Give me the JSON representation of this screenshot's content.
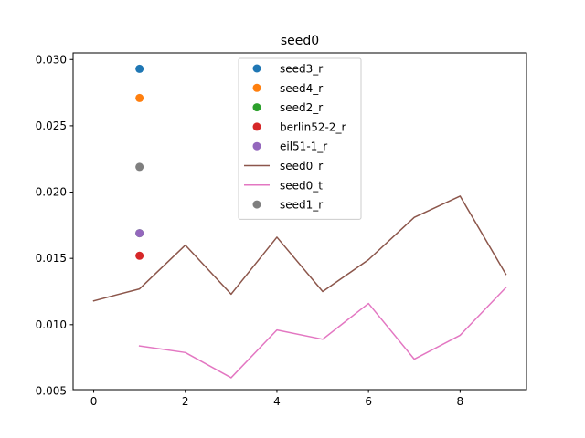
{
  "chart_data": {
    "type": "line",
    "title": "seed0",
    "xlabel": "",
    "ylabel": "",
    "xlim": [
      -0.45,
      9.45
    ],
    "ylim": [
      0.0051,
      0.0305
    ],
    "xticks": [
      0,
      2,
      4,
      6,
      8
    ],
    "yticks": [
      0.005,
      0.01,
      0.015,
      0.02,
      0.025,
      0.03
    ],
    "ytick_labels": [
      "0.005",
      "0.010",
      "0.015",
      "0.020",
      "0.025",
      "0.030"
    ],
    "grid": false,
    "legend_position": "upper-center",
    "series": [
      {
        "name": "seed3_r",
        "kind": "scatter",
        "color": "#1f77b4",
        "x": [
          1
        ],
        "y": [
          0.0293
        ]
      },
      {
        "name": "seed4_r",
        "kind": "scatter",
        "color": "#ff7f0e",
        "x": [
          1
        ],
        "y": [
          0.0271
        ]
      },
      {
        "name": "seed2_r",
        "kind": "scatter",
        "color": "#2ca02c",
        "x": [
          1
        ],
        "y": [
          0.0169
        ]
      },
      {
        "name": "berlin52-2_r",
        "kind": "scatter",
        "color": "#d62728",
        "x": [
          1
        ],
        "y": [
          0.0152
        ]
      },
      {
        "name": "eil51-1_r",
        "kind": "scatter",
        "color": "#9467bd",
        "x": [
          1
        ],
        "y": [
          0.0169
        ]
      },
      {
        "name": "seed0_r",
        "kind": "line",
        "color": "#8c564b",
        "x": [
          0,
          1,
          2,
          3,
          4,
          5,
          6,
          7,
          8,
          9
        ],
        "y": [
          0.0118,
          0.0127,
          0.016,
          0.0123,
          0.0166,
          0.0125,
          0.0149,
          0.0181,
          0.0197,
          0.0138
        ]
      },
      {
        "name": "seed0_t",
        "kind": "line",
        "color": "#e377c2",
        "x": [
          1,
          2,
          3,
          4,
          5,
          6,
          7,
          8,
          9
        ],
        "y": [
          0.0084,
          0.0079,
          0.006,
          0.0096,
          0.0089,
          0.0116,
          0.0074,
          0.0092,
          0.0128
        ]
      },
      {
        "name": "seed1_r",
        "kind": "scatter",
        "color": "#7f7f7f",
        "x": [
          1
        ],
        "y": [
          0.0219
        ]
      }
    ]
  }
}
